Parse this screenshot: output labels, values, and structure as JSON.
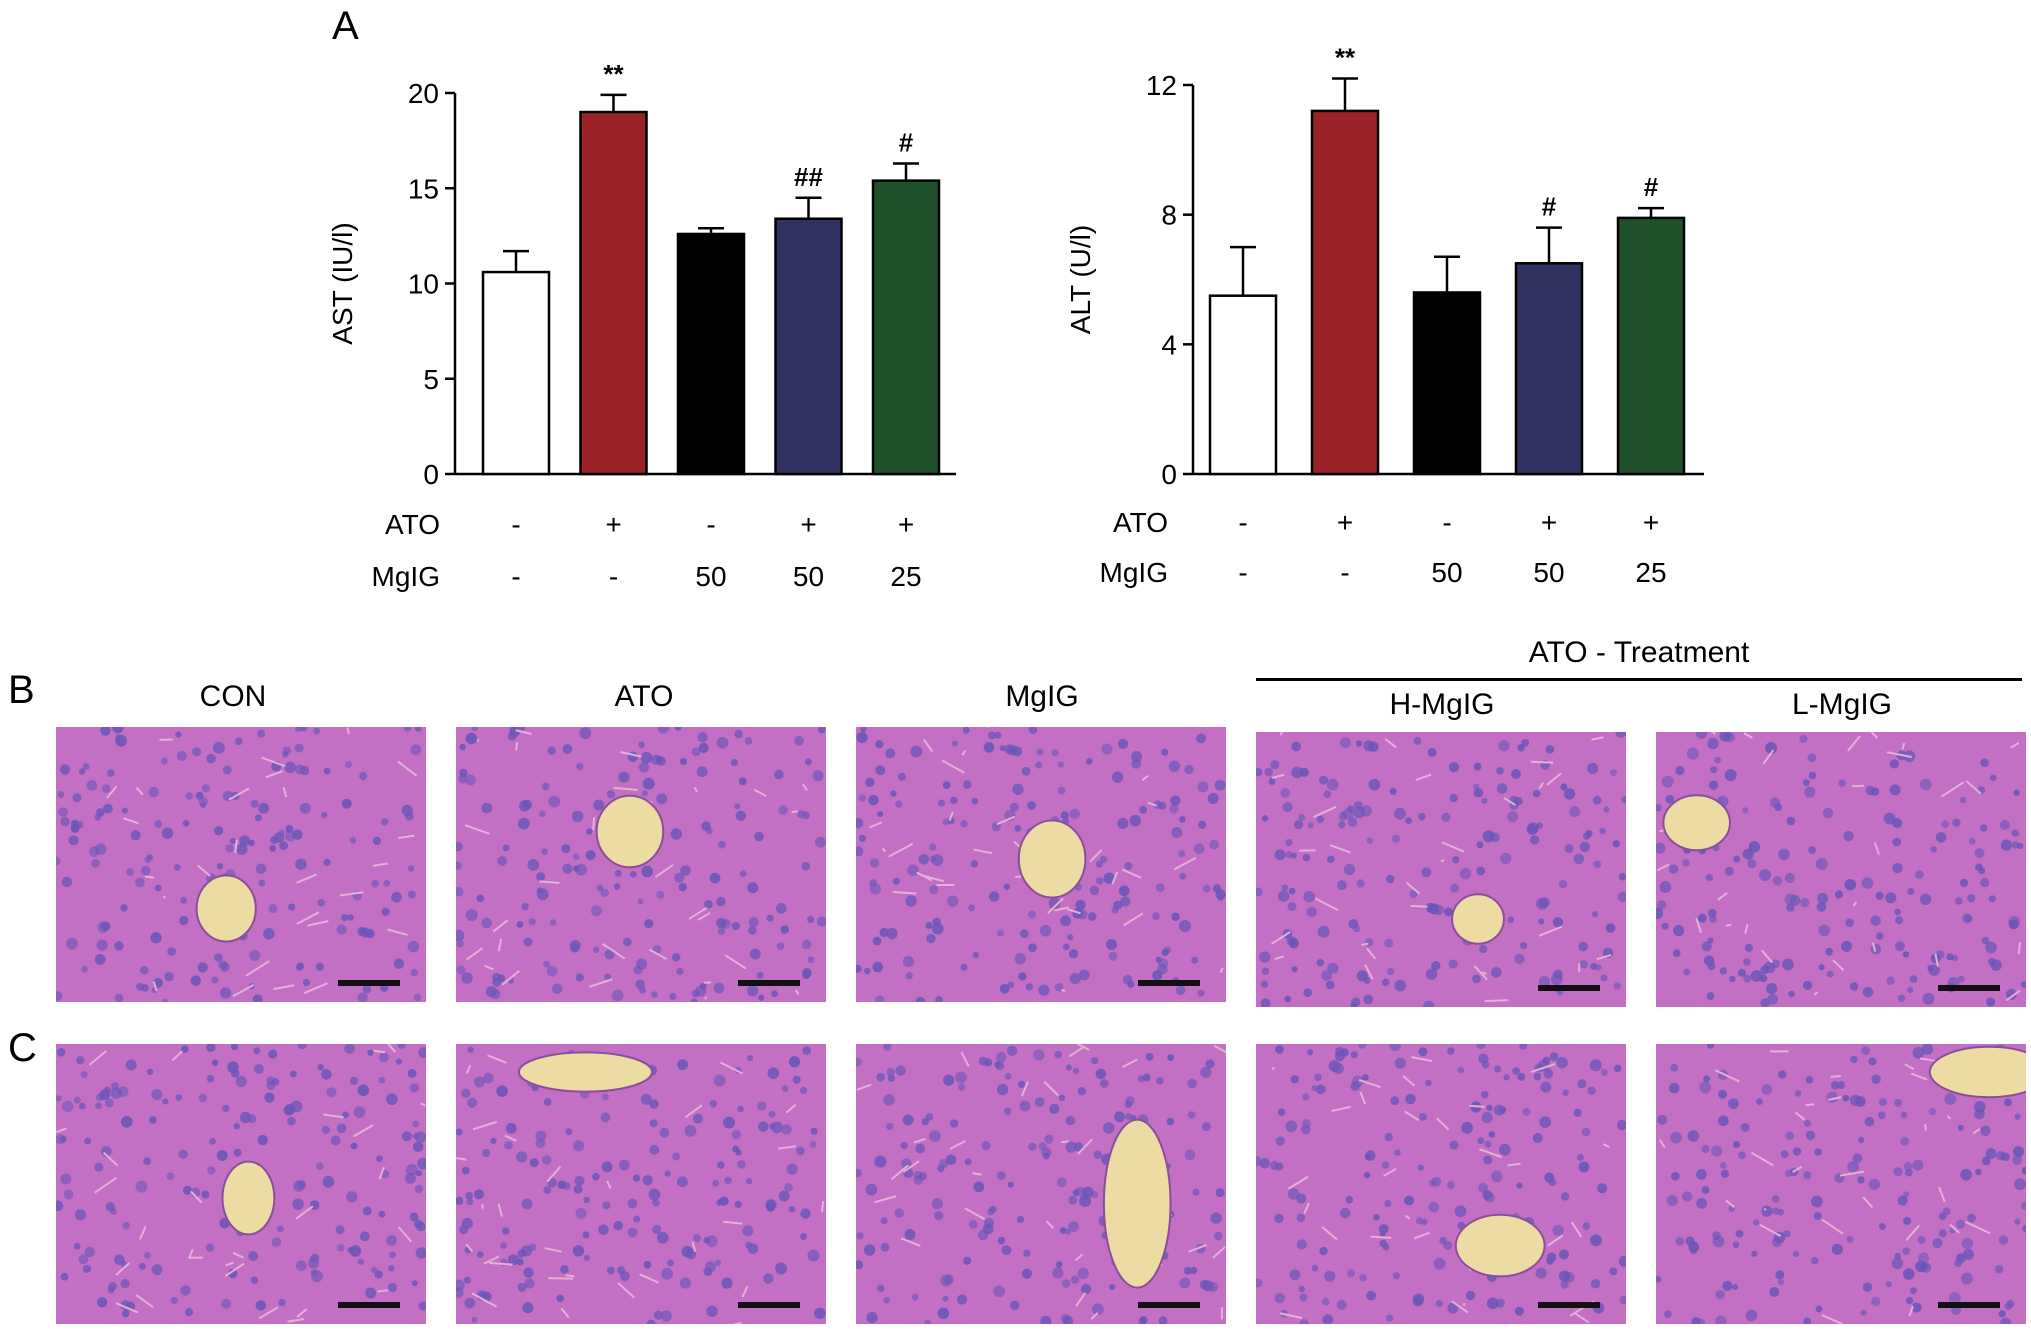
{
  "panel_labels": {
    "a": "A",
    "b": "B",
    "c": "C"
  },
  "chart_data": [
    {
      "type": "bar",
      "ylabel": "AST (IU/l)",
      "ylim": [
        0,
        20
      ],
      "yticks": [
        0,
        5,
        10,
        15,
        20
      ],
      "categories": [
        "1",
        "2",
        "3",
        "4",
        "5"
      ],
      "values": [
        10.6,
        19.0,
        12.6,
        13.4,
        15.4
      ],
      "errors": [
        1.1,
        0.9,
        0.3,
        1.1,
        0.9
      ],
      "colors": [
        "#ffffff",
        "#9b2328",
        "#000000",
        "#323260",
        "#1f502c"
      ],
      "annotations": [
        "",
        "**",
        "",
        "##",
        "#"
      ],
      "treatment_rows": [
        {
          "label": "ATO",
          "values": [
            "-",
            "+",
            "-",
            "+",
            "+"
          ]
        },
        {
          "label": "MgIG",
          "values": [
            "-",
            "-",
            "50",
            "50",
            "25"
          ]
        }
      ]
    },
    {
      "type": "bar",
      "ylabel": "ALT (U/l)",
      "ylim": [
        0,
        12
      ],
      "yticks": [
        0,
        4,
        8,
        12
      ],
      "categories": [
        "1",
        "2",
        "3",
        "4",
        "5"
      ],
      "values": [
        5.5,
        11.2,
        5.6,
        6.5,
        7.9
      ],
      "errors": [
        1.5,
        1.0,
        1.1,
        1.1,
        0.3
      ],
      "colors": [
        "#ffffff",
        "#9b2328",
        "#000000",
        "#323260",
        "#1f502c"
      ],
      "annotations": [
        "",
        "**",
        "",
        "#",
        "#"
      ],
      "treatment_rows": [
        {
          "label": "ATO",
          "values": [
            "-",
            "+",
            "-",
            "+",
            "+"
          ]
        },
        {
          "label": "MgIG",
          "values": [
            "-",
            "-",
            "50",
            "50",
            "25"
          ]
        }
      ]
    }
  ],
  "histology": {
    "group_label": "ATO - Treatment",
    "column_titles": [
      "CON",
      "ATO",
      "MgIG",
      "H-MgIG",
      "L-MgIG"
    ],
    "colors": {
      "tissue": "#c26fc4",
      "nuclei": "#6a56b8",
      "lumen": "#ecdca4"
    }
  }
}
